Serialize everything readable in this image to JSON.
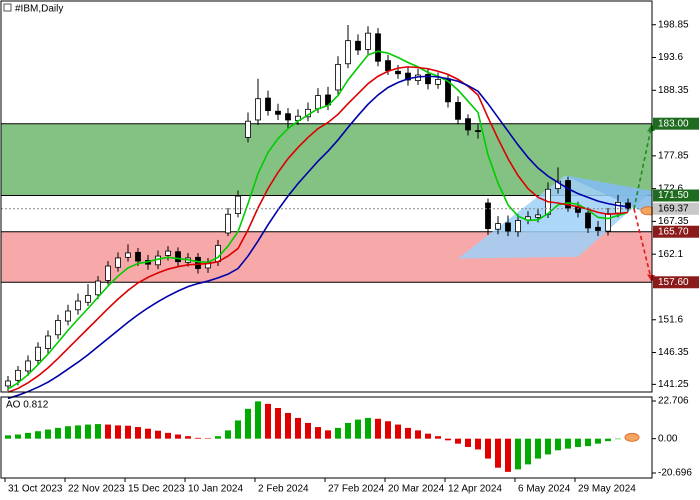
{
  "chart_data": {
    "type": "candlestick",
    "title": "#IBM,Daily",
    "categories": [
      "31 Oct 2023",
      null,
      null,
      null,
      null,
      null,
      "22 Nov 2023",
      null,
      null,
      null,
      null,
      null,
      "15 Dec 2023",
      null,
      null,
      null,
      null,
      null,
      "10 Jan 2024",
      null,
      null,
      null,
      null,
      null,
      null,
      "2 Feb 2024",
      null,
      null,
      null,
      null,
      null,
      null,
      "27 Feb 2024",
      null,
      null,
      null,
      null,
      null,
      "20 Mar 2024",
      null,
      null,
      null,
      null,
      null,
      "12 Apr 2024",
      null,
      null,
      null,
      null,
      null,
      null,
      "6 May 2024",
      null,
      null,
      null,
      null,
      null,
      "29 May 2024",
      null,
      null,
      null,
      null,
      null
    ],
    "open": [
      141.0,
      141.9,
      143.4,
      145.1,
      147.0,
      149.2,
      151.4,
      153.2,
      154.4,
      155.6,
      157.9,
      160.0,
      161.6,
      162.4,
      161.1,
      160.4,
      161.9,
      162.5,
      160.8,
      161.6,
      159.9,
      160.9,
      165.5,
      168.6,
      180.8,
      183.6,
      187.1,
      185.0,
      184.6,
      183.5,
      184.1,
      185.4,
      187.6,
      188.4,
      192.6,
      196.2,
      194.9,
      197.4,
      193.1,
      191.4,
      191.1,
      189.9,
      190.9,
      189.3,
      190.2,
      186.4,
      183.8,
      181.9,
      170.3,
      166.1,
      167.1,
      165.7,
      167.6,
      168.0,
      168.5,
      172.6,
      173.9,
      169.6,
      168.7,
      166.4,
      165.8,
      168.7,
      170.3
    ],
    "high": [
      142.6,
      144.2,
      145.9,
      148.0,
      149.9,
      152.4,
      154.0,
      155.8,
      157.3,
      158.6,
      161.0,
      162.4,
      163.7,
      163.1,
      162.0,
      162.7,
      163.4,
      163.2,
      162.3,
      162.3,
      161.5,
      164.4,
      169.5,
      172.3,
      184.8,
      190.2,
      188.3,
      186.2,
      185.5,
      185.3,
      186.4,
      188.7,
      188.9,
      193.8,
      198.8,
      197.3,
      198.6,
      198.3,
      194.0,
      192.4,
      192.1,
      191.8,
      191.9,
      191.2,
      190.9,
      187.4,
      184.5,
      182.9,
      171.0,
      168.2,
      168.3,
      168.5,
      169.0,
      169.3,
      173.6,
      176.0,
      174.5,
      170.5,
      169.6,
      167.4,
      169.5,
      171.6,
      171.0
    ],
    "low": [
      140.2,
      141.1,
      142.6,
      144.3,
      146.1,
      148.5,
      150.7,
      152.4,
      153.8,
      154.9,
      157.2,
      159.3,
      160.9,
      160.2,
      159.6,
      159.7,
      161.1,
      160.0,
      160.1,
      159.0,
      159.1,
      160.2,
      165.0,
      168.0,
      180.0,
      182.8,
      184.3,
      183.6,
      182.3,
      182.8,
      183.4,
      184.7,
      185.2,
      187.6,
      191.9,
      194.0,
      194.1,
      192.2,
      190.8,
      190.2,
      189.1,
      189.2,
      188.5,
      188.6,
      185.6,
      182.9,
      181.1,
      180.6,
      165.2,
      165.3,
      165.0,
      164.9,
      166.9,
      167.2,
      167.9,
      171.8,
      168.9,
      168.0,
      165.5,
      165.0,
      165.1,
      168.0,
      168.9
    ],
    "close": [
      141.8,
      143.5,
      145.0,
      147.2,
      149.0,
      151.5,
      153.0,
      154.6,
      155.5,
      157.8,
      160.2,
      161.5,
      162.3,
      161.0,
      160.5,
      161.8,
      162.6,
      160.9,
      161.5,
      159.8,
      160.8,
      163.5,
      168.5,
      171.4,
      183.4,
      187.0,
      185.1,
      184.5,
      183.6,
      184.2,
      185.3,
      187.5,
      186.0,
      192.5,
      196.3,
      194.8,
      197.5,
      193.0,
      191.5,
      191.0,
      190.0,
      190.8,
      189.4,
      190.1,
      186.5,
      183.7,
      182.0,
      181.8,
      166.2,
      167.0,
      165.8,
      167.5,
      168.1,
      168.4,
      172.5,
      173.8,
      169.5,
      168.8,
      166.3,
      165.9,
      168.6,
      170.4,
      169.37
    ],
    "last_close_label": "169.37",
    "candle_colors": {
      "up": "#ffffff",
      "down": "#000000",
      "outline": "#000000"
    },
    "ylim": [
      140.03,
      202.65
    ],
    "yticks": [
      198.85,
      193.6,
      188.35,
      177.85,
      172.6,
      167.35,
      162.1,
      151.6,
      146.35,
      141.25
    ],
    "moving_averages": [
      {
        "color": "#00cc00",
        "values": [
          140.5,
          141.5,
          142.8,
          144.4,
          146.1,
          148.0,
          149.9,
          151.7,
          153.4,
          155.2,
          157.0,
          158.6,
          159.9,
          160.6,
          160.9,
          161.3,
          161.6,
          161.4,
          161.2,
          160.9,
          160.8,
          161.6,
          163.4,
          165.7,
          170.2,
          175.0,
          178.4,
          180.6,
          182.2,
          183.4,
          184.4,
          185.4,
          185.9,
          187.5,
          190.0,
          192.0,
          194.0,
          194.6,
          194.3,
          193.6,
          192.8,
          192.1,
          191.2,
          190.6,
          189.8,
          188.4,
          186.6,
          184.8,
          178.0,
          173.5,
          170.0,
          168.2,
          167.5,
          167.6,
          168.6,
          170.0,
          170.3,
          170.1,
          169.2,
          168.0,
          167.8,
          168.3,
          168.8
        ]
      },
      {
        "color": "#dd0000",
        "values": [
          140.0,
          140.6,
          141.5,
          142.6,
          143.9,
          145.4,
          147.0,
          148.6,
          150.2,
          151.8,
          153.4,
          154.9,
          156.3,
          157.5,
          158.4,
          159.1,
          159.7,
          160.1,
          160.4,
          160.5,
          160.6,
          160.9,
          161.8,
          163.0,
          166.0,
          169.5,
          172.6,
          175.2,
          177.4,
          179.2,
          180.8,
          182.2,
          183.2,
          184.5,
          186.2,
          187.8,
          189.4,
          190.6,
          191.4,
          191.9,
          192.1,
          192.0,
          191.8,
          191.4,
          190.9,
          190.1,
          189.0,
          187.6,
          184.0,
          180.6,
          177.4,
          174.7,
          172.6,
          171.2,
          170.5,
          170.3,
          170.0,
          169.7,
          169.3,
          168.8,
          168.5,
          168.6,
          168.8
        ]
      },
      {
        "color": "#0000aa",
        "values": [
          139.0,
          139.5,
          140.1,
          140.8,
          141.6,
          142.6,
          143.7,
          144.8,
          146.0,
          147.3,
          148.6,
          149.9,
          151.2,
          152.4,
          153.5,
          154.5,
          155.4,
          156.2,
          156.9,
          157.4,
          157.8,
          158.3,
          158.9,
          159.8,
          161.8,
          164.2,
          166.8,
          169.2,
          171.4,
          173.4,
          175.2,
          177.0,
          178.6,
          180.4,
          182.4,
          184.3,
          186.1,
          187.6,
          188.8,
          189.6,
          190.2,
          190.5,
          190.6,
          190.5,
          190.2,
          189.8,
          189.1,
          188.2,
          186.2,
          184.0,
          181.8,
          179.6,
          177.6,
          175.9,
          174.6,
          173.6,
          172.6,
          171.8,
          171.2,
          170.6,
          170.2,
          169.9,
          169.7
        ]
      }
    ],
    "zones": [
      {
        "top": {
          "value": 183.0,
          "label": "183.00"
        },
        "bottom": {
          "value": 171.5,
          "label": "171.50"
        },
        "color": "#7dbf7d",
        "label_color": "#1f6b1f",
        "arrow_color": "#1f8a1f"
      },
      {
        "top": {
          "value": 165.7,
          "label": "165.70"
        },
        "bottom": {
          "value": 157.6,
          "label": "157.60"
        },
        "color": "#f7a3a3",
        "label_color": "#8b1a1a",
        "arrow_color": "#e01818"
      }
    ],
    "pattern": [
      {
        "color": "#9fd0f7",
        "x": [
          45,
          55.7,
          64.4,
          57
        ],
        "y": [
          161.4,
          174.7,
          172.2,
          161.7
        ]
      },
      {
        "color": "#7fb8e6",
        "x": [
          55.7,
          64.4,
          64.4
        ],
        "y": [
          174.7,
          172.2,
          168.2
        ]
      }
    ],
    "subplot": {
      "type": "histogram",
      "title": "AO 0.812",
      "values": [
        2.0,
        2.5,
        3.5,
        4.5,
        5.5,
        6.5,
        7.5,
        8.0,
        8.5,
        8.8,
        8.5,
        8.0,
        7.8,
        7.0,
        6.0,
        4.8,
        3.5,
        2.5,
        1.5,
        0.5,
        0.2,
        1.5,
        5.0,
        11.0,
        18.0,
        22.5,
        21.0,
        18.5,
        15.5,
        12.5,
        9.5,
        7.0,
        5.0,
        6.5,
        9.5,
        11.5,
        12.5,
        12.0,
        10.5,
        8.5,
        6.5,
        5.0,
        3.0,
        1.5,
        -1.0,
        -3.0,
        -5.0,
        -6.5,
        -12.0,
        -17.5,
        -20.0,
        -18.5,
        -15.5,
        -12.0,
        -9.5,
        -7.0,
        -6.0,
        -5.0,
        -4.5,
        -3.0,
        -1.5,
        0.0,
        0.812
      ],
      "ylim": [
        -23.71,
        25.12
      ],
      "yticks": [
        22.706,
        {
          "value": 0,
          "label": "0.00"
        },
        -20.696
      ],
      "colors": {
        "up": "#00aa00",
        "down": "#e00000"
      }
    }
  }
}
